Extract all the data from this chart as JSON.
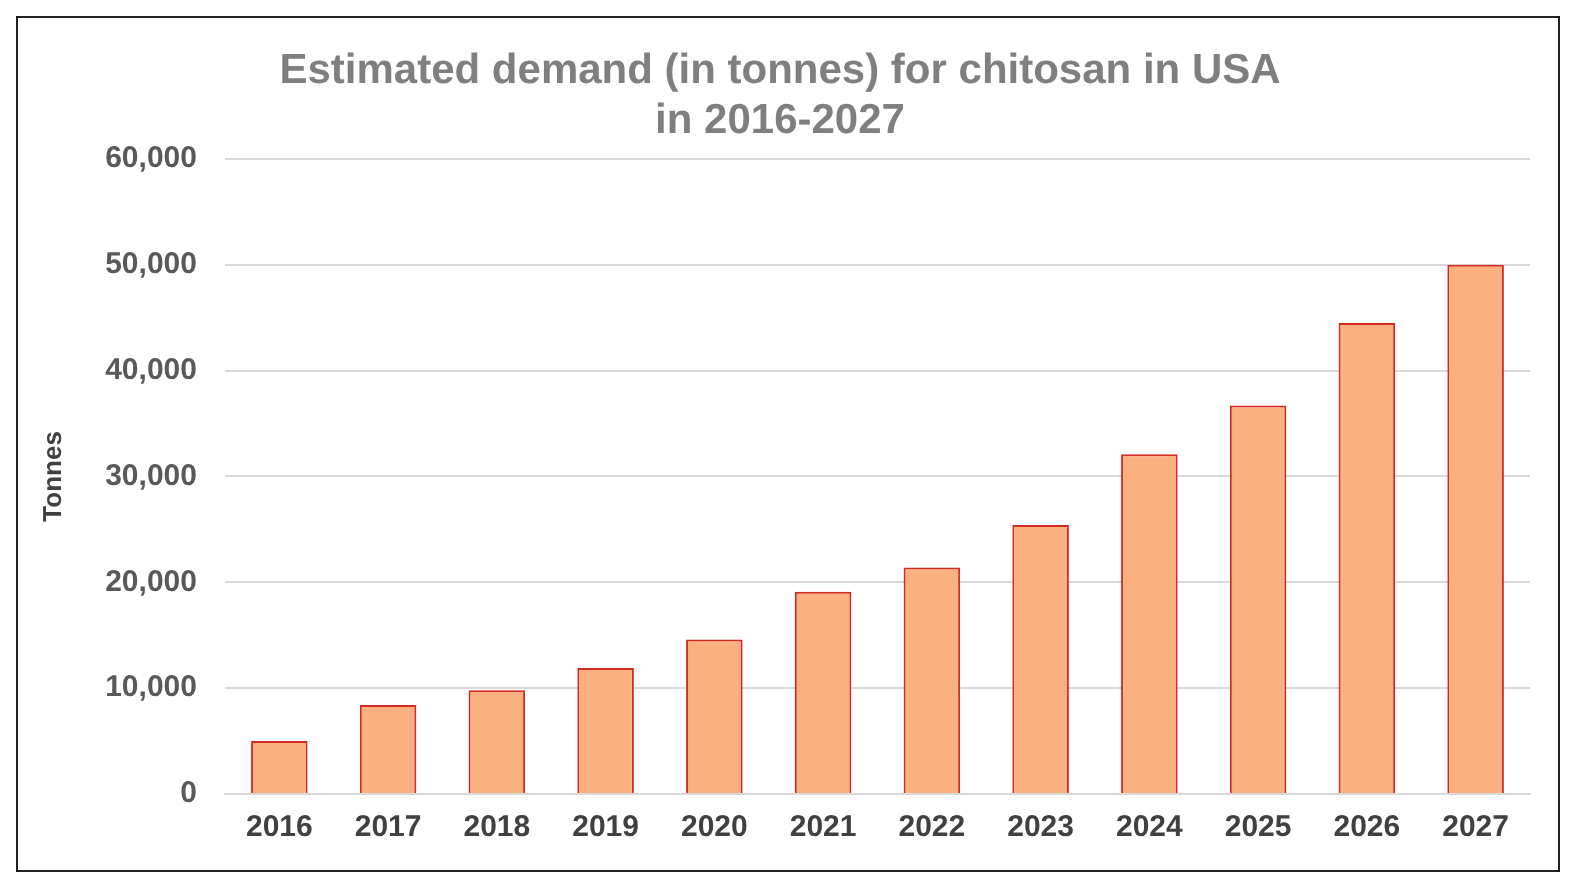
{
  "chart_data": {
    "type": "bar",
    "title": "Estimated demand (in tonnes) for chitosan in USA in 2016-2027",
    "ylabel": "Tonnes",
    "categories": [
      "2016",
      "2017",
      "2018",
      "2019",
      "2020",
      "2021",
      "2022",
      "2023",
      "2024",
      "2025",
      "2026",
      "2027"
    ],
    "series": [
      {
        "color": "#fbb07f",
        "values": [
          5000,
          8400,
          9800,
          11900,
          14600,
          19100,
          21400,
          25400,
          32100,
          36700,
          44500,
          50000
        ]
      }
    ],
    "ylim": [
      0,
      60000
    ],
    "yticks": [
      {
        "value": 0,
        "label": "0"
      },
      {
        "value": 10000,
        "label": "10,000"
      },
      {
        "value": 20000,
        "label": "20,000"
      },
      {
        "value": 30000,
        "label": "30,000"
      },
      {
        "value": 40000,
        "label": "40,000"
      },
      {
        "value": 50000,
        "label": "50,000"
      },
      {
        "value": 60000,
        "label": "60,000"
      }
    ],
    "grid": "y",
    "legend": false
  }
}
